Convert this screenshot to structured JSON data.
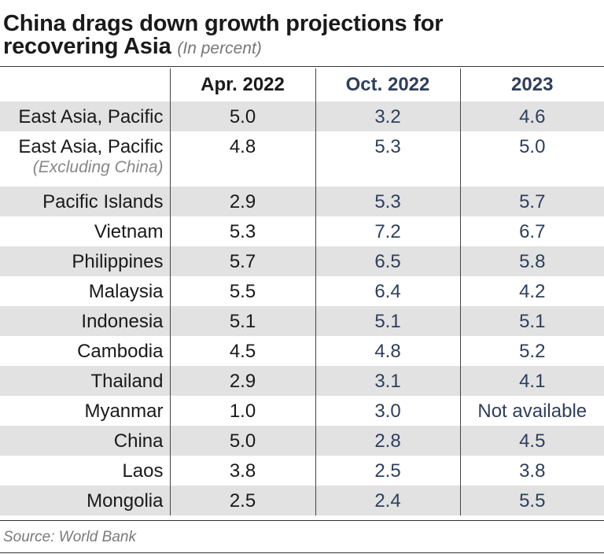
{
  "title_line1": "China drags down growth projections for",
  "title_line2": "recovering Asia",
  "subtitle": "(In percent)",
  "source": "Source: World Bank",
  "colors": {
    "header_dark": "#1a1a1a",
    "header_blue": "#2e3f5c",
    "row_shade": "#e2e2e2"
  },
  "chart_data": {
    "type": "table",
    "title": "China drags down growth projections for recovering Asia",
    "subtitle": "(In percent)",
    "columns": [
      "",
      "Apr. 2022",
      "Oct. 2022",
      "2023"
    ],
    "rows": [
      {
        "name": "East Asia, Pacific",
        "note": "",
        "apr": "5.0",
        "oct": "3.2",
        "y2023": "4.6"
      },
      {
        "name": "East Asia, Pacific",
        "note": "(Excluding China)",
        "apr": "4.8",
        "oct": "5.3",
        "y2023": "5.0"
      },
      {
        "name": "Pacific Islands",
        "note": "",
        "apr": "2.9",
        "oct": "5.3",
        "y2023": "5.7"
      },
      {
        "name": "Vietnam",
        "note": "",
        "apr": "5.3",
        "oct": "7.2",
        "y2023": "6.7"
      },
      {
        "name": "Philippines",
        "note": "",
        "apr": "5.7",
        "oct": "6.5",
        "y2023": "5.8"
      },
      {
        "name": "Malaysia",
        "note": "",
        "apr": "5.5",
        "oct": "6.4",
        "y2023": "4.2"
      },
      {
        "name": "Indonesia",
        "note": "",
        "apr": "5.1",
        "oct": "5.1",
        "y2023": "5.1"
      },
      {
        "name": "Cambodia",
        "note": "",
        "apr": "4.5",
        "oct": "4.8",
        "y2023": "5.2"
      },
      {
        "name": "Thailand",
        "note": "",
        "apr": "2.9",
        "oct": "3.1",
        "y2023": "4.1"
      },
      {
        "name": "Myanmar",
        "note": "",
        "apr": "1.0",
        "oct": "3.0",
        "y2023": "Not available"
      },
      {
        "name": "China",
        "note": "",
        "apr": "5.0",
        "oct": "2.8",
        "y2023": "4.5"
      },
      {
        "name": "Laos",
        "note": "",
        "apr": "3.8",
        "oct": "2.5",
        "y2023": "3.8"
      },
      {
        "name": "Mongolia",
        "note": "",
        "apr": "2.5",
        "oct": "2.4",
        "y2023": "5.5"
      }
    ]
  }
}
